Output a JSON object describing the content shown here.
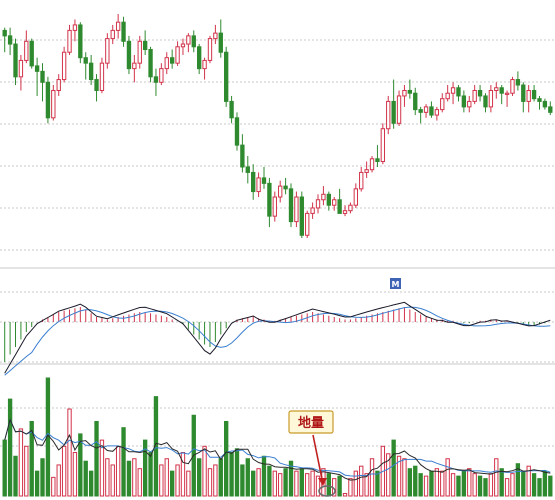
{
  "chart_data": {
    "type": "candlestick",
    "panels": [
      "price",
      "macd",
      "volume"
    ],
    "grid": true,
    "colors": {
      "up": "#d2334a",
      "down": "#2f8a2f",
      "dif_line": "#1a1a2a",
      "dea_line": "#3a7fd0",
      "volume_ma1": "#2a2a2a",
      "volume_ma2": "#3a7fd0",
      "annotation_border": "#c89a2a",
      "annotation_text": "#b01818",
      "badge": "#3f63b5"
    },
    "annotation": {
      "text": "地量",
      "target_bar": 63
    },
    "badge": {
      "text": "M"
    },
    "ohlc": [
      [
        64,
        65,
        56,
        62
      ],
      [
        62,
        65,
        55,
        59
      ],
      [
        59,
        61,
        44,
        47
      ],
      [
        47,
        55,
        42,
        53
      ],
      [
        53,
        64,
        52,
        60
      ],
      [
        60,
        61,
        50,
        51
      ],
      [
        51,
        54,
        40,
        49
      ],
      [
        49,
        52,
        38,
        45
      ],
      [
        45,
        47,
        30,
        32
      ],
      [
        32,
        44,
        31,
        42
      ],
      [
        42,
        48,
        40,
        46
      ],
      [
        46,
        58,
        45,
        56
      ],
      [
        56,
        66,
        55,
        64
      ],
      [
        64,
        68,
        60,
        66
      ],
      [
        66,
        67,
        52,
        54
      ],
      [
        54,
        56,
        46,
        52
      ],
      [
        52,
        55,
        44,
        46
      ],
      [
        46,
        48,
        38,
        42
      ],
      [
        42,
        54,
        41,
        52
      ],
      [
        52,
        63,
        50,
        61
      ],
      [
        61,
        66,
        59,
        64
      ],
      [
        64,
        70,
        61,
        67
      ],
      [
        67,
        69,
        58,
        60
      ],
      [
        60,
        62,
        48,
        50
      ],
      [
        50,
        55,
        45,
        52
      ],
      [
        52,
        62,
        50,
        60
      ],
      [
        60,
        64,
        55,
        57
      ],
      [
        57,
        58,
        45,
        47
      ],
      [
        47,
        50,
        40,
        45
      ],
      [
        45,
        52,
        44,
        50
      ],
      [
        50,
        56,
        48,
        54
      ],
      [
        54,
        57,
        50,
        52
      ],
      [
        52,
        60,
        51,
        58
      ],
      [
        58,
        61,
        55,
        59
      ],
      [
        59,
        63,
        56,
        62
      ],
      [
        62,
        64,
        56,
        58
      ],
      [
        58,
        59,
        48,
        50
      ],
      [
        50,
        54,
        46,
        53
      ],
      [
        53,
        62,
        52,
        61
      ],
      [
        61,
        66,
        59,
        63
      ],
      [
        63,
        68,
        54,
        56
      ],
      [
        56,
        58,
        36,
        38
      ],
      [
        38,
        40,
        30,
        32
      ],
      [
        32,
        34,
        20,
        22
      ],
      [
        22,
        26,
        12,
        14
      ],
      [
        14,
        18,
        8,
        12
      ],
      [
        12,
        15,
        2,
        5
      ],
      [
        5,
        12,
        3,
        10
      ],
      [
        10,
        14,
        6,
        8
      ],
      [
        8,
        10,
        -8,
        -4
      ],
      [
        -4,
        5,
        -6,
        3
      ],
      [
        3,
        9,
        1,
        7
      ],
      [
        7,
        10,
        4,
        6
      ],
      [
        6,
        8,
        -8,
        -6
      ],
      [
        -6,
        5,
        -8,
        3
      ],
      [
        3,
        5,
        -12,
        -11
      ],
      [
        -11,
        -2,
        -12,
        -3
      ],
      [
        -3,
        1,
        -5,
        -1
      ],
      [
        -1,
        4,
        -3,
        2
      ],
      [
        2,
        7,
        0,
        4
      ],
      [
        4,
        5,
        -2,
        0
      ],
      [
        0,
        3,
        -2,
        2
      ],
      [
        2,
        6,
        -3,
        -3
      ],
      [
        -3,
        0,
        -4,
        -2
      ],
      [
        -2,
        1,
        -3,
        0
      ],
      [
        0,
        8,
        -1,
        6
      ],
      [
        6,
        14,
        5,
        12
      ],
      [
        12,
        16,
        10,
        13
      ],
      [
        13,
        18,
        12,
        17
      ],
      [
        17,
        22,
        14,
        16
      ],
      [
        16,
        30,
        15,
        28
      ],
      [
        28,
        40,
        26,
        38
      ],
      [
        38,
        46,
        28,
        30
      ],
      [
        30,
        42,
        29,
        40
      ],
      [
        40,
        44,
        36,
        42
      ],
      [
        42,
        46,
        39,
        41
      ],
      [
        41,
        43,
        33,
        35
      ],
      [
        35,
        36,
        30,
        34
      ],
      [
        34,
        37,
        32,
        36
      ],
      [
        36,
        38,
        32,
        33
      ],
      [
        33,
        36,
        31,
        35
      ],
      [
        35,
        41,
        34,
        39
      ],
      [
        39,
        44,
        38,
        41
      ],
      [
        41,
        45,
        37,
        43
      ],
      [
        43,
        44,
        38,
        40
      ],
      [
        40,
        42,
        34,
        36
      ],
      [
        36,
        40,
        34,
        38
      ],
      [
        38,
        44,
        37,
        42
      ],
      [
        42,
        44,
        38,
        40
      ],
      [
        40,
        41,
        34,
        36
      ],
      [
        36,
        44,
        34,
        42
      ],
      [
        42,
        45,
        39,
        43
      ],
      [
        43,
        44,
        37,
        41
      ],
      [
        41,
        42,
        36,
        41
      ],
      [
        41,
        47,
        40,
        46
      ],
      [
        46,
        49,
        42,
        44
      ],
      [
        44,
        45,
        34,
        38
      ],
      [
        38,
        44,
        34,
        42
      ],
      [
        42,
        44,
        38,
        39
      ],
      [
        39,
        40,
        35,
        38
      ],
      [
        38,
        39,
        35,
        36
      ],
      [
        36,
        38,
        33,
        34
      ]
    ],
    "volume": [
      45,
      78,
      32,
      54,
      40,
      60,
      20,
      30,
      95,
      15,
      25,
      40,
      70,
      35,
      50,
      28,
      20,
      60,
      45,
      30,
      25,
      40,
      55,
      28,
      30,
      22,
      45,
      35,
      80,
      25,
      30,
      20,
      25,
      35,
      20,
      65,
      30,
      40,
      22,
      25,
      30,
      60,
      35,
      38,
      25,
      30,
      20,
      22,
      32,
      24,
      20,
      18,
      22,
      28,
      20,
      22,
      18,
      20,
      16,
      22,
      18,
      14,
      16,
      2,
      14,
      20,
      24,
      18,
      30,
      20,
      40,
      34,
      45,
      32,
      30,
      22,
      24,
      18,
      16,
      20,
      22,
      20,
      30,
      18,
      16,
      20,
      22,
      18,
      16,
      14,
      18,
      30,
      22,
      14,
      18,
      26,
      20,
      24,
      18,
      14,
      20,
      16
    ],
    "macd_hist": [
      -32,
      -26,
      -20,
      -14,
      -8,
      -4,
      0,
      2,
      4,
      6,
      8,
      9,
      10,
      11,
      12,
      10,
      7,
      4,
      3,
      2,
      3,
      4,
      5,
      6,
      7,
      8,
      8,
      7,
      6,
      5,
      4,
      2,
      0,
      -2,
      -6,
      -10,
      -14,
      -18,
      -20,
      -16,
      -10,
      -5,
      0,
      2,
      3,
      4,
      5,
      3,
      2,
      1,
      1,
      2,
      3,
      4,
      5,
      6,
      7,
      8,
      7,
      6,
      5,
      4,
      3,
      2,
      2,
      3,
      4,
      5,
      6,
      7,
      8,
      9,
      10,
      11,
      12,
      10,
      8,
      6,
      4,
      3,
      2,
      2,
      1,
      1,
      0,
      -1,
      -1,
      0,
      1,
      1,
      2,
      2,
      1,
      1,
      0,
      -1,
      -2,
      -3,
      -3,
      -2,
      -1,
      0
    ]
  }
}
